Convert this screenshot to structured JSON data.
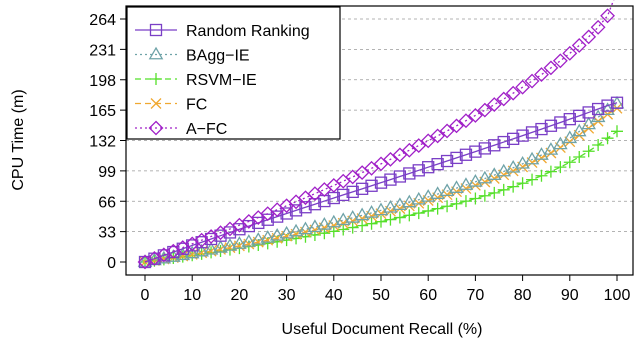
{
  "chart_data": {
    "type": "line",
    "xlabel": "Useful Document Recall (%)",
    "ylabel": "CPU Time (m)",
    "xlim": [
      0,
      100
    ],
    "ylim": [
      0,
      280
    ],
    "xticks": [
      0,
      10,
      20,
      30,
      40,
      50,
      60,
      70,
      80,
      90,
      100
    ],
    "yticks": [
      0,
      33,
      66,
      99,
      132,
      165,
      198,
      231,
      264
    ],
    "grid": "horizontal-dotted",
    "legend_position": "top-left",
    "x": [
      0,
      2,
      4,
      6,
      8,
      10,
      12,
      14,
      16,
      18,
      20,
      22,
      24,
      26,
      28,
      30,
      32,
      34,
      36,
      38,
      40,
      42,
      44,
      46,
      48,
      50,
      52,
      54,
      56,
      58,
      60,
      62,
      64,
      66,
      68,
      70,
      72,
      74,
      76,
      78,
      80,
      82,
      84,
      86,
      88,
      90,
      92,
      94,
      96,
      98,
      100
    ],
    "series": [
      {
        "name": "Random Ranking",
        "marker": "square",
        "line_style": "solid",
        "color": "#7a3fc6",
        "values": [
          0,
          3.6,
          7.2,
          10.8,
          14.4,
          18,
          21.5,
          25,
          28.6,
          32.1,
          35.6,
          39,
          42.5,
          45.9,
          49.3,
          52.7,
          56.1,
          59.5,
          62.8,
          66.2,
          69.5,
          72.9,
          76.2,
          79.5,
          82.8,
          86.2,
          89.5,
          92.9,
          96.2,
          99.6,
          103,
          106.3,
          109.7,
          113.1,
          116.5,
          119.9,
          123.4,
          126.8,
          130.3,
          133.8,
          137.3,
          140.8,
          144.4,
          148,
          151.6,
          155.2,
          158.8,
          162.5,
          166.2,
          169.9,
          173
        ]
      },
      {
        "name": "BAgg−IE",
        "marker": "triangle",
        "line_style": "dotted",
        "color": "#6fa3a8",
        "values": [
          0,
          1.8,
          3.7,
          5.5,
          7.4,
          9.3,
          11.3,
          13.3,
          15.4,
          17.5,
          19.6,
          21.8,
          24,
          26.2,
          28.5,
          30.8,
          33.1,
          35.5,
          37.9,
          40.4,
          42.9,
          45.4,
          48,
          50.7,
          53.4,
          56.1,
          58.9,
          61.8,
          64.7,
          67.7,
          70.7,
          73.8,
          77,
          80.3,
          83.6,
          87.1,
          90.7,
          94.4,
          98.3,
          102.4,
          106.7,
          111.3,
          116.3,
          121.8,
          127.8,
          134.5,
          141.8,
          149.5,
          157.3,
          165,
          172
        ]
      },
      {
        "name": "RSVM−IE",
        "marker": "plus",
        "line_style": "dashed",
        "color": "#55e02a",
        "values": [
          0,
          1.4,
          2.9,
          4.3,
          5.8,
          7.3,
          8.8,
          10.4,
          11.9,
          13.5,
          15.1,
          16.8,
          18.5,
          20.2,
          22,
          23.8,
          25.6,
          27.5,
          29.4,
          31.3,
          33.3,
          35.3,
          37.4,
          39.5,
          41.6,
          43.8,
          46,
          48.3,
          50.7,
          53.1,
          55.5,
          58,
          60.6,
          63.3,
          66.1,
          69,
          72,
          75.1,
          78.4,
          81.9,
          85.6,
          89.5,
          93.7,
          98.2,
          103.1,
          108.4,
          114.1,
          120.3,
          127.1,
          134.5,
          142
        ]
      },
      {
        "name": "FC",
        "marker": "x",
        "line_style": "dashed",
        "color": "#f0a830",
        "values": [
          0,
          1.6,
          3.2,
          4.8,
          6.5,
          8.2,
          10,
          11.8,
          13.7,
          15.6,
          17.5,
          19.5,
          21.6,
          23.7,
          25.8,
          28,
          30.2,
          32.5,
          34.8,
          37.2,
          39.6,
          42.1,
          44.6,
          47.2,
          49.8,
          52.5,
          55.2,
          58,
          60.9,
          63.8,
          66.8,
          69.9,
          73.1,
          76.4,
          79.8,
          83.3,
          86.9,
          90.7,
          94.7,
          98.9,
          103.3,
          108,
          113,
          118.4,
          124.3,
          130.7,
          137.7,
          145.2,
          152.9,
          160.5,
          167
        ]
      },
      {
        "name": "A−FC",
        "marker": "diamond",
        "line_style": "dotted",
        "color": "#a020c8",
        "values": [
          0,
          3.9,
          7.8,
          11.7,
          15.7,
          19.7,
          23.7,
          27.7,
          31.8,
          35.9,
          40,
          44.1,
          48.3,
          52.5,
          56.8,
          61.1,
          65.4,
          69.8,
          74.2,
          78.7,
          83.2,
          87.8,
          92.4,
          97.1,
          101.8,
          106.6,
          111.5,
          116.4,
          121.4,
          126.5,
          131.7,
          137,
          142.4,
          147.9,
          153.5,
          159.2,
          165,
          171,
          177.1,
          183.4,
          189.9,
          196.6,
          203.6,
          210.9,
          218.6,
          226.7,
          235.3,
          244.6,
          255,
          267.5,
          294
        ]
      }
    ]
  }
}
